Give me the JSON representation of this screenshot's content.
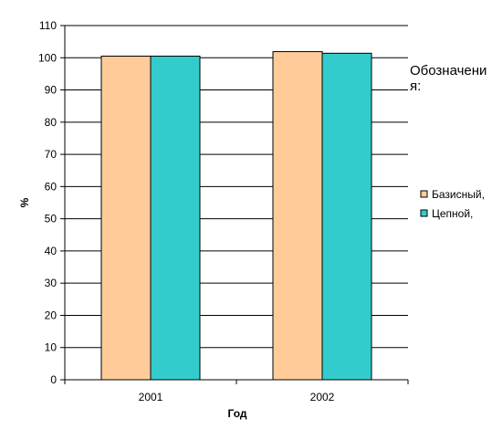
{
  "chart_data": {
    "type": "bar",
    "categories": [
      "2001",
      "2002"
    ],
    "series": [
      {
        "name": "Базисный,",
        "values": [
          100.5,
          101.9
        ],
        "color": "#FFCC99"
      },
      {
        "name": "Цепной,",
        "values": [
          100.5,
          101.4
        ],
        "color": "#33CCCC"
      }
    ],
    "xlabel": "Год",
    "ylabel": "%",
    "ylim": [
      0,
      110
    ],
    "yticks": [
      0,
      10,
      20,
      30,
      40,
      50,
      60,
      70,
      80,
      90,
      100,
      110
    ],
    "grid": true,
    "legend": {
      "title_line1": "Обозначени",
      "title_line2": "я:",
      "placement": "right"
    }
  }
}
